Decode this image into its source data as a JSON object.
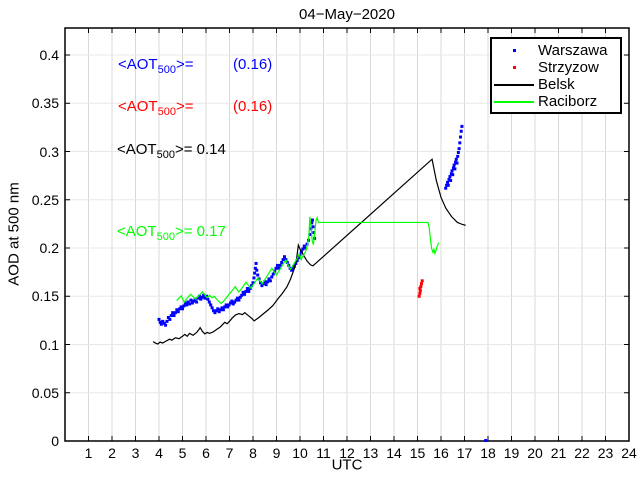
{
  "figure": {
    "title": "04−May−2020",
    "background": "#ffffff"
  },
  "axes": {
    "xlabel": "UTC",
    "ylabel": "AOD at 500 nm"
  },
  "annotations": [
    {
      "prefix": "<AOT",
      "sub": "500",
      "eq": ">=",
      "value": "(0.16)",
      "color": "#0000ff",
      "tabbed": true
    },
    {
      "prefix": "<AOT",
      "sub": "500",
      "eq": ">=",
      "value": "(0.16)",
      "color": "#ff0000",
      "tabbed": true
    },
    {
      "prefix": "<AOT",
      "sub": "500",
      "eq": ">=",
      "value": " 0.14",
      "color": "#000000",
      "tabbed": false
    },
    {
      "prefix": "<AOT",
      "sub": "500",
      "eq": ">=",
      "value": " 0.17",
      "color": "#00ff00",
      "tabbed": false
    }
  ],
  "chart_data": {
    "type": "scatter+line",
    "title": "04−May−2020",
    "xlabel": "UTC",
    "ylabel": "AOD at 500 nm",
    "xlim": [
      0,
      24
    ],
    "ylim": [
      0,
      0.428
    ],
    "grid": true,
    "grid_color_vertical": "#d8d8d8",
    "grid_color_horizontal": "#e8e8e8",
    "axis_color": "#000000",
    "legend_position": "top-right",
    "xticks": [
      1,
      2,
      3,
      4,
      5,
      6,
      7,
      8,
      9,
      10,
      11,
      12,
      13,
      14,
      15,
      16,
      17,
      18,
      19,
      20,
      21,
      22,
      23,
      24
    ],
    "ytick_values": [
      0,
      0.05,
      0.1,
      0.15,
      0.2,
      0.25,
      0.3,
      0.35,
      0.4
    ],
    "ytick_labels": [
      "0",
      "0.05",
      "0.1",
      "0.15",
      "0.2",
      "0.25",
      "0.3",
      "0.35",
      "0.4"
    ],
    "series": [
      {
        "name": "Warszawa",
        "style": "scatter",
        "color": "#0000ff",
        "mean_aot_500": "(0.16)",
        "points": [
          [
            4.0,
            0.126
          ],
          [
            4.05,
            0.123
          ],
          [
            4.1,
            0.121
          ],
          [
            4.16,
            0.124
          ],
          [
            4.22,
            0.122
          ],
          [
            4.28,
            0.12
          ],
          [
            4.34,
            0.124
          ],
          [
            4.4,
            0.128
          ],
          [
            4.46,
            0.126
          ],
          [
            4.52,
            0.13
          ],
          [
            4.58,
            0.133
          ],
          [
            4.64,
            0.13
          ],
          [
            4.7,
            0.133
          ],
          [
            4.76,
            0.136
          ],
          [
            4.82,
            0.134
          ],
          [
            4.88,
            0.137
          ],
          [
            4.94,
            0.139
          ],
          [
            5.0,
            0.137
          ],
          [
            5.06,
            0.14
          ],
          [
            5.12,
            0.143
          ],
          [
            5.18,
            0.141
          ],
          [
            5.24,
            0.144
          ],
          [
            5.3,
            0.142
          ],
          [
            5.36,
            0.146
          ],
          [
            5.42,
            0.143
          ],
          [
            5.48,
            0.145
          ],
          [
            5.54,
            0.147
          ],
          [
            5.6,
            0.144
          ],
          [
            5.66,
            0.148
          ],
          [
            5.72,
            0.15
          ],
          [
            5.78,
            0.147
          ],
          [
            5.84,
            0.149
          ],
          [
            5.9,
            0.151
          ],
          [
            5.96,
            0.148
          ],
          [
            6.02,
            0.15
          ],
          [
            6.08,
            0.147
          ],
          [
            6.14,
            0.144
          ],
          [
            6.2,
            0.141
          ],
          [
            6.26,
            0.138
          ],
          [
            6.32,
            0.135
          ],
          [
            6.38,
            0.133
          ],
          [
            6.44,
            0.135
          ],
          [
            6.5,
            0.137
          ],
          [
            6.56,
            0.134
          ],
          [
            6.62,
            0.136
          ],
          [
            6.68,
            0.138
          ],
          [
            6.74,
            0.136
          ],
          [
            6.8,
            0.139
          ],
          [
            6.86,
            0.141
          ],
          [
            6.92,
            0.139
          ],
          [
            6.98,
            0.141
          ],
          [
            7.04,
            0.143
          ],
          [
            7.1,
            0.145
          ],
          [
            7.16,
            0.142
          ],
          [
            7.22,
            0.144
          ],
          [
            7.28,
            0.146
          ],
          [
            7.34,
            0.148
          ],
          [
            7.4,
            0.146
          ],
          [
            7.46,
            0.149
          ],
          [
            7.52,
            0.151
          ],
          [
            7.58,
            0.154
          ],
          [
            7.64,
            0.152
          ],
          [
            7.7,
            0.155
          ],
          [
            7.76,
            0.158
          ],
          [
            7.82,
            0.155
          ],
          [
            7.88,
            0.158
          ],
          [
            7.94,
            0.161
          ],
          [
            8.0,
            0.164
          ],
          [
            8.04,
            0.169
          ],
          [
            8.07,
            0.174
          ],
          [
            8.1,
            0.179
          ],
          [
            8.13,
            0.184
          ],
          [
            8.16,
            0.177
          ],
          [
            8.2,
            0.172
          ],
          [
            8.26,
            0.168
          ],
          [
            8.32,
            0.164
          ],
          [
            8.38,
            0.161
          ],
          [
            8.44,
            0.163
          ],
          [
            8.5,
            0.165
          ],
          [
            8.56,
            0.162
          ],
          [
            8.62,
            0.165
          ],
          [
            8.68,
            0.168
          ],
          [
            8.74,
            0.166
          ],
          [
            8.8,
            0.17
          ],
          [
            8.86,
            0.173
          ],
          [
            8.92,
            0.176
          ],
          [
            8.98,
            0.179
          ],
          [
            9.04,
            0.182
          ],
          [
            9.1,
            0.179
          ],
          [
            9.16,
            0.182
          ],
          [
            9.22,
            0.185
          ],
          [
            9.28,
            0.188
          ],
          [
            9.34,
            0.191
          ],
          [
            9.4,
            0.188
          ],
          [
            9.46,
            0.185
          ],
          [
            9.52,
            0.182
          ],
          [
            9.58,
            0.179
          ],
          [
            9.64,
            0.177
          ],
          [
            9.7,
            0.179
          ],
          [
            9.76,
            0.181
          ],
          [
            9.82,
            0.184
          ],
          [
            9.88,
            0.187
          ],
          [
            9.94,
            0.19
          ],
          [
            10.0,
            0.193
          ],
          [
            10.06,
            0.196
          ],
          [
            10.12,
            0.199
          ],
          [
            10.18,
            0.202
          ],
          [
            10.24,
            0.2
          ],
          [
            10.3,
            0.204
          ],
          [
            10.36,
            0.208
          ],
          [
            10.42,
            0.214
          ],
          [
            10.46,
            0.22
          ],
          [
            10.5,
            0.226
          ],
          [
            10.53,
            0.229
          ],
          [
            10.56,
            0.222
          ],
          [
            10.59,
            0.216
          ],
          [
            10.62,
            0.21
          ],
          [
            16.2,
            0.262
          ],
          [
            16.24,
            0.265
          ],
          [
            16.28,
            0.268
          ],
          [
            16.31,
            0.265
          ],
          [
            16.34,
            0.271
          ],
          [
            16.38,
            0.274
          ],
          [
            16.41,
            0.27
          ],
          [
            16.44,
            0.277
          ],
          [
            16.47,
            0.28
          ],
          [
            16.5,
            0.276
          ],
          [
            16.53,
            0.283
          ],
          [
            16.56,
            0.286
          ],
          [
            16.59,
            0.282
          ],
          [
            16.62,
            0.289
          ],
          [
            16.65,
            0.292
          ],
          [
            16.68,
            0.288
          ],
          [
            16.71,
            0.295
          ],
          [
            16.74,
            0.299
          ],
          [
            16.77,
            0.303
          ],
          [
            16.8,
            0.309
          ],
          [
            16.83,
            0.315
          ],
          [
            16.86,
            0.321
          ],
          [
            16.89,
            0.326
          ],
          [
            17.9,
            0.0005
          ]
        ]
      },
      {
        "name": "Strzyzow",
        "style": "scatter",
        "color": "#ff0000",
        "mean_aot_500": "(0.16)",
        "points": [
          [
            15.07,
            0.15
          ],
          [
            15.1,
            0.153
          ],
          [
            15.12,
            0.156
          ],
          [
            15.1,
            0.158
          ],
          [
            15.14,
            0.16
          ],
          [
            15.17,
            0.163
          ],
          [
            15.2,
            0.166
          ]
        ]
      },
      {
        "name": "Belsk",
        "style": "line",
        "color": "#000000",
        "mean_aot_500": "0.14",
        "points": [
          [
            3.75,
            0.103
          ],
          [
            3.85,
            0.1015
          ],
          [
            3.95,
            0.1005
          ],
          [
            4.05,
            0.1025
          ],
          [
            4.15,
            0.1015
          ],
          [
            4.3,
            0.1035
          ],
          [
            4.45,
            0.1055
          ],
          [
            4.55,
            0.1045
          ],
          [
            4.7,
            0.107
          ],
          [
            4.85,
            0.106
          ],
          [
            5.0,
            0.1085
          ],
          [
            5.1,
            0.1105
          ],
          [
            5.2,
            0.1085
          ],
          [
            5.3,
            0.1115
          ],
          [
            5.45,
            0.1095
          ],
          [
            5.6,
            0.1125
          ],
          [
            5.7,
            0.1155
          ],
          [
            5.75,
            0.1175
          ],
          [
            5.85,
            0.1135
          ],
          [
            5.95,
            0.111
          ],
          [
            6.05,
            0.1125
          ],
          [
            6.15,
            0.1115
          ],
          [
            6.3,
            0.113
          ],
          [
            6.45,
            0.1155
          ],
          [
            6.6,
            0.118
          ],
          [
            6.7,
            0.1205
          ],
          [
            6.8,
            0.123
          ],
          [
            6.9,
            0.1215
          ],
          [
            7.0,
            0.124
          ],
          [
            7.1,
            0.127
          ],
          [
            7.25,
            0.1305
          ],
          [
            7.4,
            0.132
          ],
          [
            7.55,
            0.131
          ],
          [
            7.65,
            0.133
          ],
          [
            7.8,
            0.13
          ],
          [
            7.95,
            0.127
          ],
          [
            8.05,
            0.1245
          ],
          [
            8.25,
            0.128
          ],
          [
            8.45,
            0.132
          ],
          [
            8.65,
            0.136
          ],
          [
            8.85,
            0.1405
          ],
          [
            9.05,
            0.147
          ],
          [
            9.25,
            0.153
          ],
          [
            9.45,
            0.16
          ],
          [
            9.6,
            0.168
          ],
          [
            9.75,
            0.178
          ],
          [
            9.85,
            0.188
          ],
          [
            9.93,
            0.203
          ],
          [
            10.0,
            0.199
          ],
          [
            10.15,
            0.1925
          ],
          [
            10.3,
            0.1865
          ],
          [
            10.45,
            0.1825
          ],
          [
            10.55,
            0.1815
          ],
          [
            15.62,
            0.292
          ],
          [
            15.8,
            0.27
          ],
          [
            16.0,
            0.2525
          ],
          [
            16.2,
            0.2415
          ],
          [
            16.45,
            0.2325
          ],
          [
            16.7,
            0.2265
          ],
          [
            16.9,
            0.2245
          ],
          [
            17.05,
            0.2235
          ]
        ]
      },
      {
        "name": "Raciborz",
        "style": "line",
        "color": "#00ff00",
        "mean_aot_500": "0.17",
        "points": [
          [
            4.75,
            0.1455
          ],
          [
            4.85,
            0.148
          ],
          [
            4.95,
            0.1505
          ],
          [
            5.0,
            0.1475
          ],
          [
            5.08,
            0.144
          ],
          [
            5.15,
            0.1465
          ],
          [
            5.25,
            0.1495
          ],
          [
            5.35,
            0.152
          ],
          [
            5.45,
            0.1495
          ],
          [
            5.55,
            0.147
          ],
          [
            5.65,
            0.1495
          ],
          [
            5.75,
            0.152
          ],
          [
            5.85,
            0.1545
          ],
          [
            5.95,
            0.1515
          ],
          [
            6.05,
            0.1485
          ],
          [
            6.15,
            0.151
          ],
          [
            6.25,
            0.1485
          ],
          [
            6.35,
            0.15
          ],
          [
            6.45,
            0.147
          ],
          [
            6.55,
            0.1445
          ],
          [
            6.65,
            0.1425
          ],
          [
            6.75,
            0.145
          ],
          [
            6.85,
            0.148
          ],
          [
            6.95,
            0.151
          ],
          [
            7.05,
            0.154
          ],
          [
            7.15,
            0.157
          ],
          [
            7.25,
            0.16
          ],
          [
            7.3,
            0.1575
          ],
          [
            7.4,
            0.1545
          ],
          [
            7.5,
            0.1575
          ],
          [
            7.6,
            0.161
          ],
          [
            7.7,
            0.1645
          ],
          [
            7.8,
            0.1615
          ],
          [
            7.9,
            0.1585
          ],
          [
            8.0,
            0.1615
          ],
          [
            8.1,
            0.165
          ],
          [
            8.2,
            0.169
          ],
          [
            8.3,
            0.166
          ],
          [
            8.4,
            0.163
          ],
          [
            8.5,
            0.167
          ],
          [
            8.6,
            0.171
          ],
          [
            8.7,
            0.175
          ],
          [
            8.8,
            0.179
          ],
          [
            8.9,
            0.1755
          ],
          [
            9.0,
            0.172
          ],
          [
            9.1,
            0.176
          ],
          [
            9.2,
            0.18
          ],
          [
            9.3,
            0.184
          ],
          [
            9.4,
            0.1875
          ],
          [
            9.5,
            0.182
          ],
          [
            9.6,
            0.178
          ],
          [
            9.7,
            0.182
          ],
          [
            9.8,
            0.186
          ],
          [
            9.9,
            0.19
          ],
          [
            9.97,
            0.194
          ],
          [
            10.05,
            0.188
          ],
          [
            10.15,
            0.1925
          ],
          [
            10.25,
            0.197
          ],
          [
            10.32,
            0.2035
          ],
          [
            10.38,
            0.2125
          ],
          [
            10.42,
            0.2325
          ],
          [
            10.47,
            0.2215
          ],
          [
            10.52,
            0.2075
          ],
          [
            10.57,
            0.2035
          ],
          [
            10.62,
            0.214
          ],
          [
            10.68,
            0.2285
          ],
          [
            10.73,
            0.2315
          ],
          [
            10.78,
            0.2265
          ],
          [
            15.45,
            0.2265
          ],
          [
            15.5,
            0.2205
          ],
          [
            15.55,
            0.2095
          ],
          [
            15.6,
            0.1995
          ],
          [
            15.66,
            0.1955
          ],
          [
            15.7,
            0.1985
          ],
          [
            15.74,
            0.1945
          ],
          [
            15.78,
            0.197
          ],
          [
            15.84,
            0.202
          ],
          [
            15.9,
            0.2055
          ]
        ]
      }
    ]
  }
}
